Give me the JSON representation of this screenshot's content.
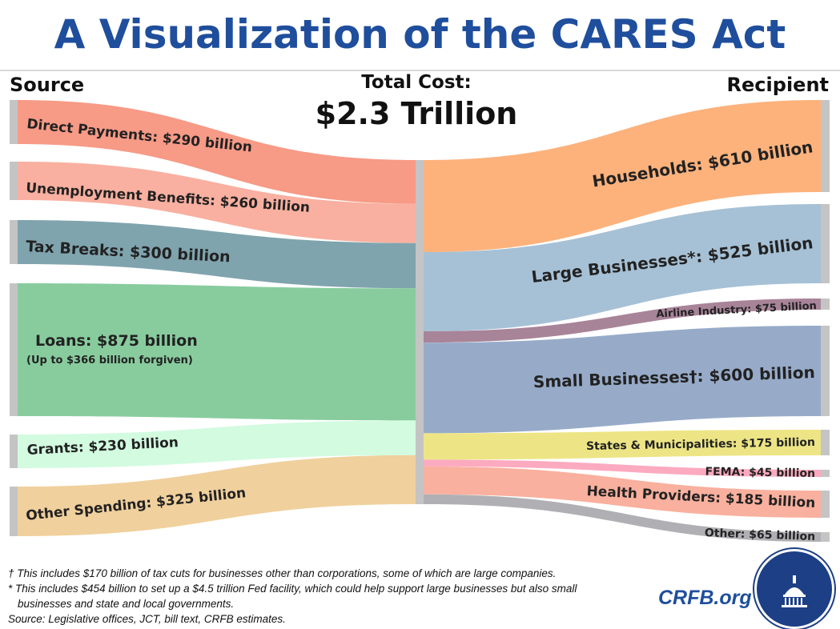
{
  "title": "A Visualization of the CARES Act",
  "headers": {
    "source": "Source",
    "recipient": "Recipient",
    "total_label": "Total Cost:",
    "total_value": "$2.3 Trillion"
  },
  "chart_data": {
    "type": "sankey",
    "title": "A Visualization of the CARES Act",
    "total": "$2.3 Trillion",
    "unit": "billion USD",
    "sources": [
      {
        "name": "Direct Payments",
        "value": 290,
        "label": "Direct Payments: $290 billion",
        "color": "#f79a86"
      },
      {
        "name": "Unemployment Benefits",
        "value": 260,
        "label": "Unemployment Benefits: $260 billion",
        "color": "#f9b0a0"
      },
      {
        "name": "Tax Breaks",
        "value": 300,
        "label": "Tax Breaks: $300 billion",
        "color": "#7fa4ae"
      },
      {
        "name": "Loans",
        "value": 875,
        "label": "Loans: $875 billion",
        "sublabel": "(Up to $366 billion forgiven)",
        "color": "#88cc9e"
      },
      {
        "name": "Grants",
        "value": 230,
        "label": "Grants: $230 billion",
        "color": "#d2fbe0"
      },
      {
        "name": "Other Spending",
        "value": 325,
        "label": "Other Spending: $325 billion",
        "color": "#f0d09c"
      }
    ],
    "recipients": [
      {
        "name": "Households",
        "value": 610,
        "label": "Households: $610 billion",
        "color": "#fdb27c"
      },
      {
        "name": "Large Businesses*",
        "value": 525,
        "label": "Large Businesses*: $525 billion",
        "color": "#a6c1d6"
      },
      {
        "name": "Airline Industry",
        "value": 75,
        "label": "Airline Industry: $75 billion",
        "color": "#a88499"
      },
      {
        "name": "Small Businesses†",
        "value": 600,
        "label": "Small Businesses†: $600 billion",
        "color": "#97abc9"
      },
      {
        "name": "States & Municipalities",
        "value": 175,
        "label": "States & Municipalities: $175 billion",
        "color": "#ede585"
      },
      {
        "name": "FEMA",
        "value": 45,
        "label": "FEMA: $45 billion",
        "color": "#fcaac0"
      },
      {
        "name": "Health Providers",
        "value": 185,
        "label": "Health Providers: $185 billion",
        "color": "#f9b09e"
      },
      {
        "name": "Other",
        "value": 65,
        "label": "Other: $65 billion",
        "color": "#b0b0b4"
      }
    ],
    "node_color": "#c4c4c4"
  },
  "footnotes": [
    "† This includes $170 billion of tax cuts for businesses other than corporations, some of which are large companies.",
    "* This includes $454 billion to set up a $4.5 trillion Fed facility, which could help support large businesses but also small",
    "businesses and state and local governments.",
    "Source: Legislative offices, JCT, bill text, CRFB estimates."
  ],
  "brand": {
    "text": "CRFB.org",
    "color": "#1f4e9c"
  }
}
